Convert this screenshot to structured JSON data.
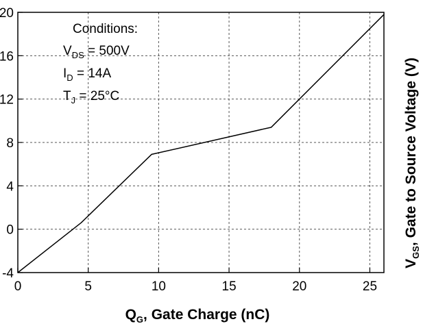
{
  "chart_data": {
    "type": "line",
    "xlabel": {
      "main": "Q",
      "sub": "G",
      "rest": ", Gate Charge (nC)"
    },
    "ylabel": {
      "main": "V",
      "sub": "GS",
      "rest": ", Gate to Source Voltage (V)"
    },
    "xlim": [
      0,
      26
    ],
    "ylim": [
      -4,
      20
    ],
    "xticks": [
      0,
      5,
      10,
      15,
      20,
      25
    ],
    "yticks": [
      -4,
      0,
      4,
      8,
      12,
      16,
      20
    ],
    "x_tick_labels": [
      "0",
      "5",
      "10",
      "15",
      "20",
      "25"
    ],
    "y_tick_labels": [
      "-4",
      "0",
      "4",
      "8",
      "12",
      "16",
      "20"
    ],
    "grid": true,
    "series": [
      {
        "x": [
          0,
          4.5,
          9.5,
          18,
          26
        ],
        "y": [
          -4,
          0.6,
          6.9,
          9.4,
          19.8
        ]
      }
    ],
    "annotation": {
      "title": "Conditions:",
      "lines": [
        {
          "main": "V",
          "sub": "DS",
          "rest": " = 500V"
        },
        {
          "main": "I",
          "sub": "D",
          "rest": " = 14A"
        },
        {
          "main": "T",
          "sub": "J",
          "rest": " = 25°C"
        }
      ]
    }
  }
}
